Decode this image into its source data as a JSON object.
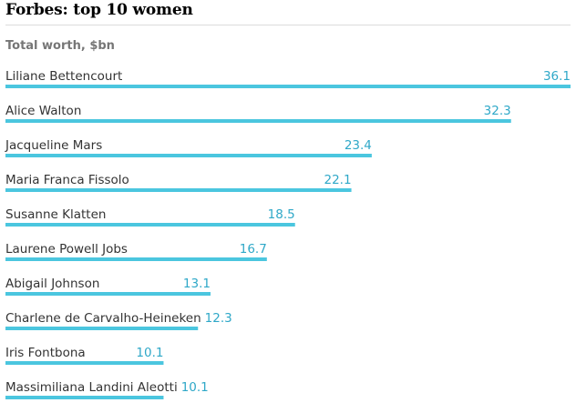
{
  "title": "Forbes: top 10 women",
  "subtitle": "Total worth, $bn",
  "colors": {
    "bar": "#4bc6df",
    "value_text": "#2fa8c8",
    "label_text": "#333333",
    "title_text": "#000000",
    "subtitle_text": "#767676"
  },
  "chart_data": {
    "type": "bar",
    "orientation": "horizontal",
    "title": "Forbes: top 10 women",
    "subtitle": "Total worth, $bn",
    "categories": [
      "Liliane Bettencourt",
      "Alice Walton",
      "Jacqueline Mars",
      "Maria Franca Fissolo",
      "Susanne Klatten",
      "Laurene Powell Jobs",
      "Abigail Johnson",
      "Charlene de Carvalho-Heineken",
      "Iris Fontbona",
      "Massimiliana Landini Aleotti"
    ],
    "values": [
      36.1,
      32.3,
      23.4,
      22.1,
      18.5,
      16.7,
      13.1,
      12.3,
      10.1,
      10.1
    ],
    "value_labels": [
      "36.1",
      "32.3",
      "23.4",
      "22.1",
      "18.5",
      "16.7",
      "13.1",
      "12.3",
      "10.1",
      "10.1"
    ],
    "xlim": [
      0,
      36.1
    ],
    "grid": false,
    "legend": "none"
  }
}
